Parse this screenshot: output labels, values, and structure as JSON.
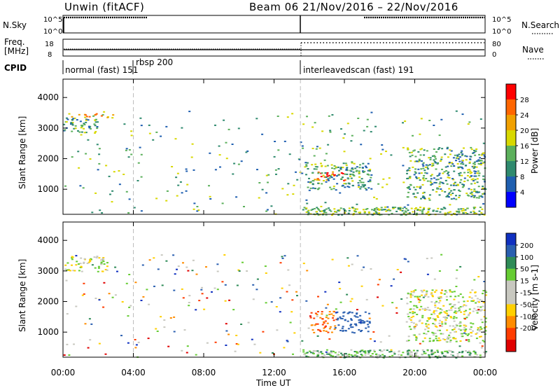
{
  "header": {
    "station_title": "Unwin (fitACF)",
    "beam_title": "Beam 06",
    "date_range": "21/Nov/2016 – 22/Nov/2016"
  },
  "top_panels": {
    "nsky_label": "N.Sky",
    "nsearch_label": "N.Search",
    "noise_ticks_left": [
      "10^5",
      "10^0"
    ],
    "noise_ticks_right": [
      "10^5",
      "10^0"
    ],
    "freq_label_line1": "Freq.",
    "freq_label_line2": "[MHz]",
    "freq_ticks": [
      "18",
      "8"
    ],
    "nave_label": "Nave",
    "nave_ticks": [
      "80",
      "0"
    ],
    "cpid_label": "CPID",
    "cpid_segments": [
      {
        "text": "normal (fast) 151"
      },
      {
        "text": "rbsp 200"
      },
      {
        "text": "interleavedscan (fast) 191"
      }
    ]
  },
  "colors": {
    "power_scale": [
      "#0000ff",
      "#1f5fb0",
      "#2f8a6e",
      "#5cb05c",
      "#d8d800",
      "#f0a000",
      "#ff6600",
      "#ff0000"
    ],
    "velocity_scale": [
      "#e00000",
      "#ff3c00",
      "#ff8c00",
      "#ffd000",
      "#c8c8c0",
      "#c8c8c0",
      "#66cc33",
      "#2e8b57",
      "#2a5fb0",
      "#1030c0"
    ]
  },
  "chart_data": [
    {
      "type": "heatmap",
      "name": "power",
      "ylabel": "Slant Range [km]",
      "ylim": [
        180,
        4600
      ],
      "yticks": [
        "1000",
        "2000",
        "3000",
        "4000"
      ],
      "colorbar_label": "Power [dB]",
      "colorbar_ticks": [
        "4",
        "8",
        "12",
        "16",
        "20",
        "24",
        "28"
      ],
      "features": [
        {
          "t_start": 0.3,
          "t_end": 3.0,
          "r_start": 3350,
          "r_end": 3500,
          "power_db": 20
        },
        {
          "t_start": 0.0,
          "t_end": 2.0,
          "r_start": 2800,
          "r_end": 3350,
          "power_db": 12
        },
        {
          "t_start": 14.2,
          "t_end": 16.0,
          "r_start": 1300,
          "r_end": 1600,
          "power_db": 26
        },
        {
          "t_start": 13.7,
          "t_end": 17.5,
          "r_start": 1000,
          "r_end": 1900,
          "power_db": 12
        },
        {
          "t_start": 19.5,
          "t_end": 24.0,
          "r_start": 700,
          "r_end": 2400,
          "power_db": 12
        }
      ]
    },
    {
      "type": "heatmap",
      "name": "velocity",
      "ylabel": "Slant Range [km]",
      "ylim": [
        180,
        4600
      ],
      "yticks": [
        "1000",
        "2000",
        "3000",
        "4000"
      ],
      "colorbar_label": "Velocity [m s-1]",
      "colorbar_ticks": [
        "200",
        "100",
        "50",
        "15",
        "-15",
        "-50",
        "-100",
        "-200"
      ],
      "features": [
        {
          "t_start": 0.0,
          "t_end": 2.5,
          "r_start": 3000,
          "r_end": 3500,
          "velocity": 0
        },
        {
          "t_start": 14.0,
          "t_end": 15.5,
          "r_start": 1000,
          "r_end": 1700,
          "velocity": -100
        },
        {
          "t_start": 15.5,
          "t_end": 17.5,
          "r_start": 1000,
          "r_end": 1700,
          "velocity": 150
        },
        {
          "t_start": 19.5,
          "t_end": 24.0,
          "r_start": 700,
          "r_end": 2400,
          "velocity": 0
        }
      ]
    }
  ],
  "time_axis": {
    "ticks": [
      "00:00",
      "04:00",
      "08:00",
      "12:00",
      "16:00",
      "20:00",
      "00:00"
    ],
    "label": "Time UT",
    "range_hours": [
      0,
      24
    ],
    "mode_change_times": [
      4.0,
      13.5
    ]
  }
}
